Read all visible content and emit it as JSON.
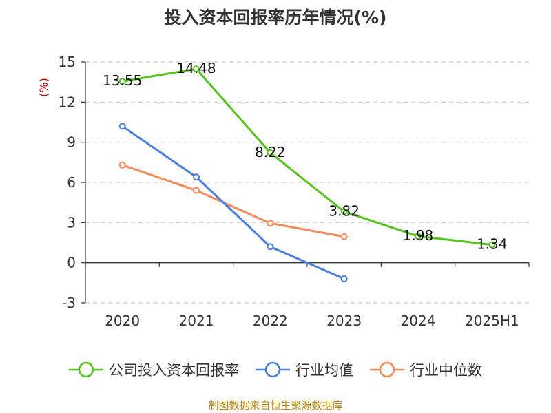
{
  "title": "投入资本回报率历年情况(%)",
  "source": "制图数据来自恒生聚源数据库",
  "chart_data": {
    "type": "line",
    "title": "投入资本回报率历年情况(%)",
    "ylabel": "(%)",
    "categories": [
      "2020",
      "2021",
      "2022",
      "2023",
      "2024",
      "2025H1"
    ],
    "ylim": [
      -3,
      15
    ],
    "yticks": [
      -3,
      0,
      3,
      6,
      9,
      12,
      15
    ],
    "grid": true,
    "legend_position": "bottom",
    "series": [
      {
        "name": "公司投入资本回报率",
        "color": "#52c41a",
        "values": [
          13.55,
          14.48,
          8.22,
          3.82,
          1.98,
          1.34
        ],
        "labels": [
          "13.55",
          "14.48",
          "8.22",
          "3.82",
          "1.98",
          "1.34"
        ]
      },
      {
        "name": "行业均值",
        "color": "#4a7fdc",
        "values": [
          10.2,
          6.4,
          1.2,
          -1.2,
          null,
          null
        ]
      },
      {
        "name": "行业中位数",
        "color": "#f5895a",
        "values": [
          7.3,
          5.4,
          2.95,
          1.95,
          null,
          null
        ]
      }
    ]
  }
}
